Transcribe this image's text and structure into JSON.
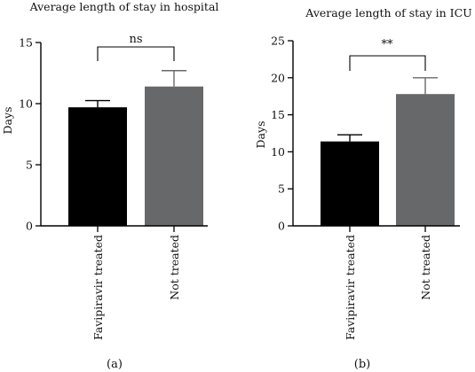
{
  "chart_data": [
    {
      "type": "bar",
      "title": "Average length of stay in hospital",
      "ylabel": "Days",
      "xlabel": "",
      "categories": [
        "Favipiravir treated",
        "Not treated"
      ],
      "values": [
        9.7,
        11.4
      ],
      "errors": [
        0.55,
        1.3
      ],
      "colors": [
        "#000000",
        "#66686a"
      ],
      "ylim": [
        0,
        15
      ],
      "yticks": [
        "0",
        "5",
        "10",
        "15"
      ],
      "significance": "ns",
      "panel_label": "(a)",
      "grid": false
    },
    {
      "type": "bar",
      "title": "Average length of stay in ICU",
      "ylabel": "Days",
      "xlabel": "",
      "categories": [
        "Favipiravir treated",
        "Not treated"
      ],
      "values": [
        11.4,
        17.8
      ],
      "errors": [
        0.9,
        2.2
      ],
      "colors": [
        "#000000",
        "#66686a"
      ],
      "ylim": [
        0,
        25
      ],
      "yticks": [
        "0",
        "5",
        "10",
        "15",
        "20",
        "25"
      ],
      "significance": "**",
      "panel_label": "(b)",
      "grid": false
    }
  ]
}
